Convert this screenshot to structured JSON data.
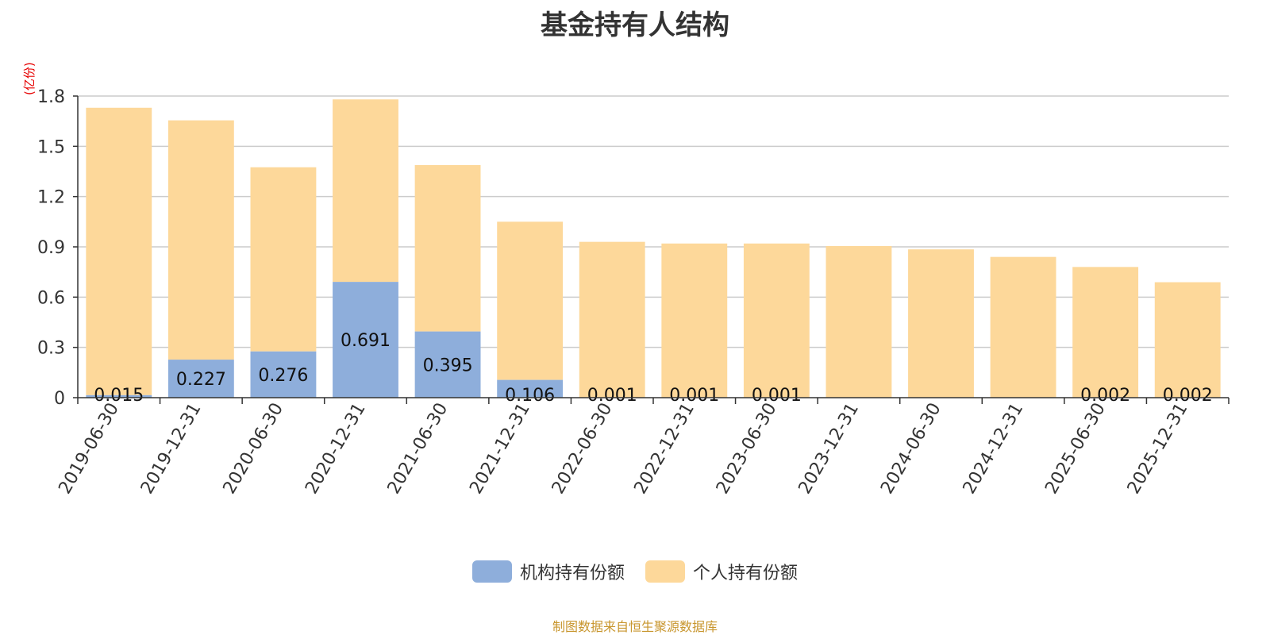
{
  "chart_data": {
    "type": "bar",
    "stacked": true,
    "title": "基金持有人结构",
    "y_unit": "(亿份)",
    "categories": [
      "2019-06-30",
      "2019-12-31",
      "2020-06-30",
      "2020-12-31",
      "2021-06-30",
      "2021-12-31",
      "2022-06-30",
      "2022-12-31",
      "2023-06-30",
      "2023-12-31",
      "2024-06-30",
      "2024-12-31",
      "2025-06-30",
      "2025-12-31"
    ],
    "series": [
      {
        "name": "机构持有份额",
        "color": "#8eaedb",
        "values": [
          0.015,
          0.227,
          0.276,
          0.691,
          0.395,
          0.106,
          0.001,
          0.001,
          0.001,
          0,
          0,
          0,
          0.002,
          0.002
        ],
        "labels": [
          "0.015",
          "0.227",
          "0.276",
          "0.691",
          "0.395",
          "0.106",
          "0.001",
          "0.001",
          "0.001",
          "",
          "",
          "",
          "0.002",
          "0.002"
        ]
      },
      {
        "name": "个人持有份额",
        "color": "#fdd89a",
        "values": [
          1.715,
          1.428,
          1.099,
          1.089,
          0.993,
          0.944,
          0.929,
          0.919,
          0.919,
          0.905,
          0.885,
          0.84,
          0.778,
          0.687
        ]
      }
    ],
    "ylim": [
      0,
      1.8
    ],
    "yticks": [
      "0",
      "0.3",
      "0.6",
      "0.9",
      "1.2",
      "1.5",
      "1.8"
    ],
    "grid": true,
    "legend_position": "bottom"
  },
  "source_note": "制图数据来自恒生聚源数据库"
}
